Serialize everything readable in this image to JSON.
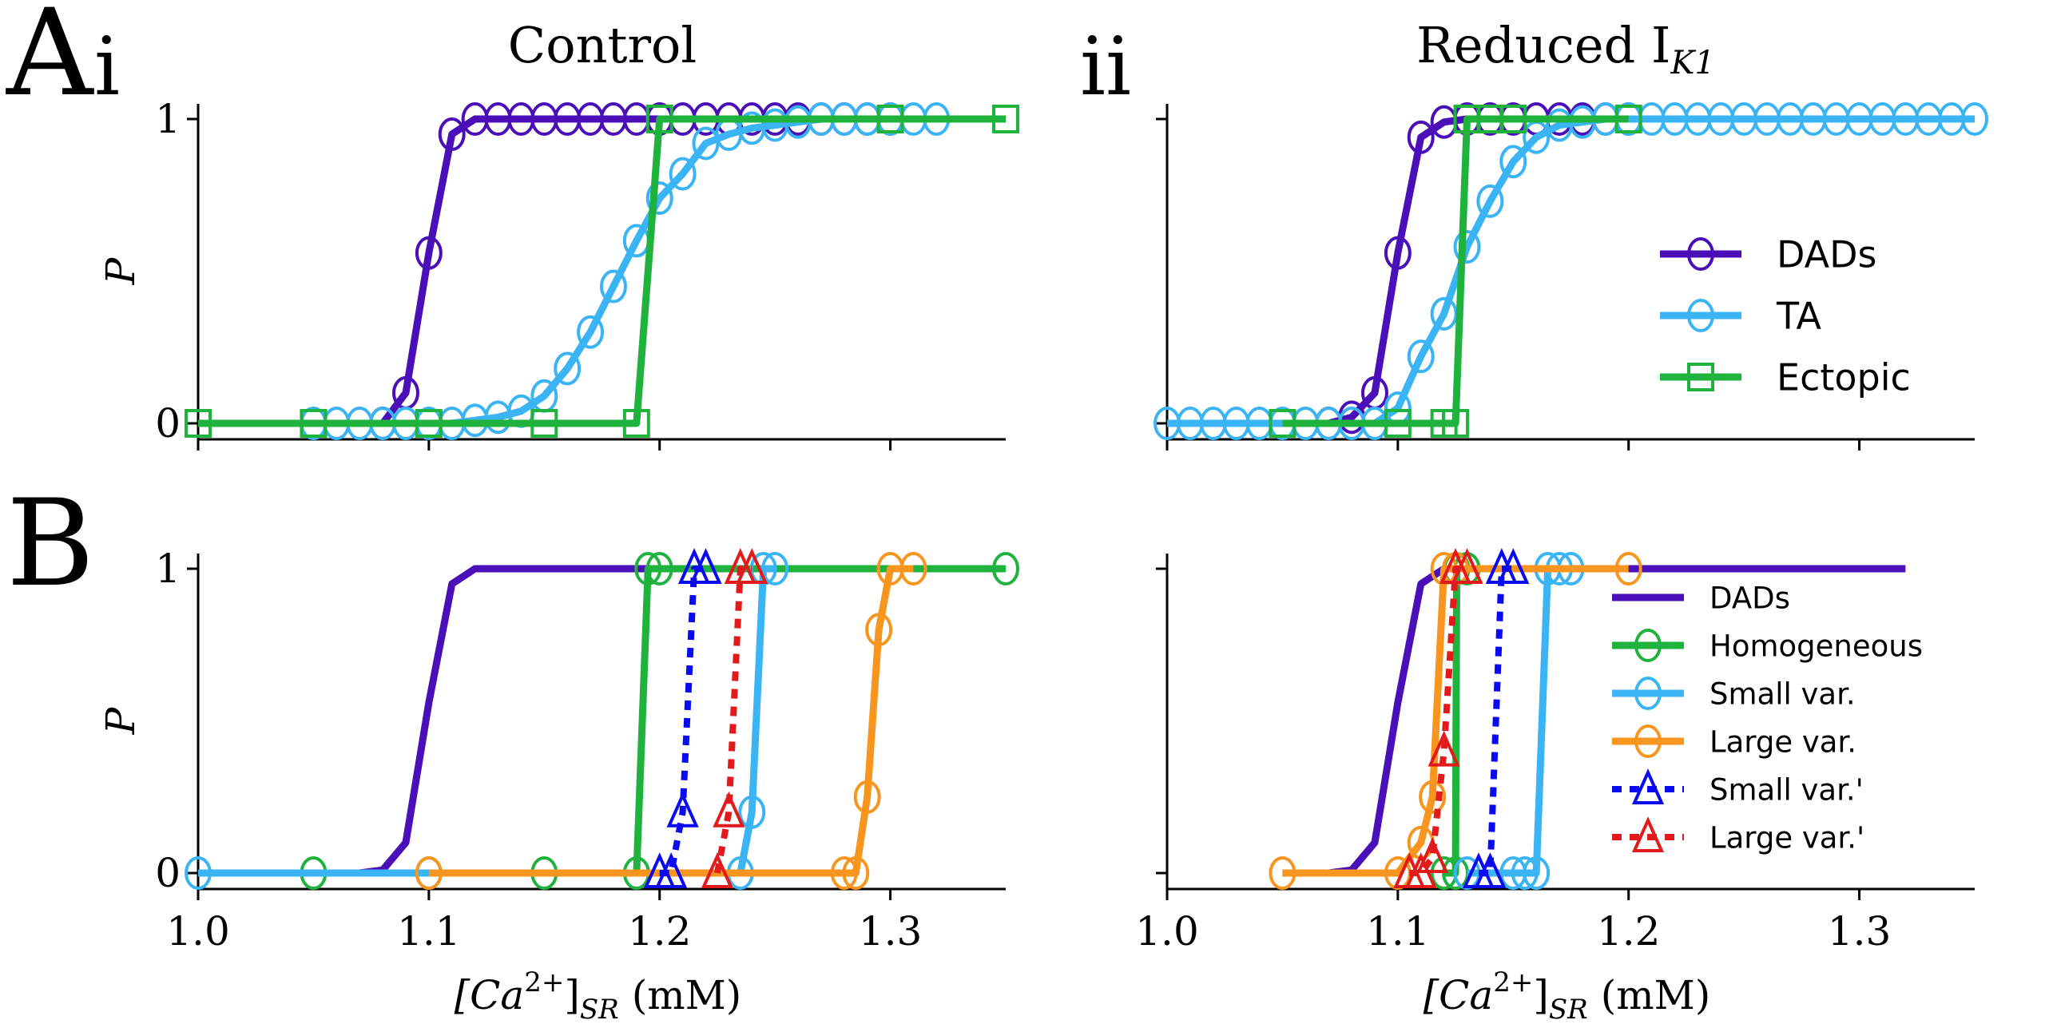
{
  "figure": {
    "panel_labels": {
      "A": "A",
      "Ai_sub": "i",
      "Aii": "ii",
      "B": "B"
    },
    "colors": {
      "DADs": "#4a0fb8",
      "TA": "#3ab4f5",
      "Ectopic": "#1fb33d",
      "Homogeneous": "#1fb33d",
      "Small var.": "#3ab4f5",
      "Large var.": "#f7951e",
      "Small var.'": "#0a0af0",
      "Large var.'": "#e31a1c"
    }
  },
  "chart_data": [
    {
      "id": "Ai",
      "type": "line",
      "title": "Control",
      "xlabel": "",
      "ylabel": "P",
      "xlim": [
        1.0,
        1.35
      ],
      "ylim": [
        0,
        1
      ],
      "xticks": [
        1.0,
        1.1,
        1.2,
        1.3
      ],
      "xtick_labels": [],
      "yticks": [
        0,
        1
      ],
      "ytick_labels": [
        "0",
        "1"
      ],
      "legend": null,
      "series": [
        {
          "name": "DADs",
          "marker": "circle",
          "dash": "solid",
          "x": [
            1.08,
            1.09,
            1.1,
            1.11,
            1.12,
            1.13,
            1.14,
            1.15,
            1.16,
            1.17,
            1.18,
            1.19,
            1.2,
            1.21,
            1.22,
            1.23,
            1.24,
            1.25,
            1.26,
            1.27,
            1.28,
            1.29,
            1.3
          ],
          "y": [
            0,
            0.1,
            0.56,
            0.95,
            1,
            1,
            1,
            1,
            1,
            1,
            1,
            1,
            1,
            1,
            1,
            1,
            1,
            1,
            1,
            1,
            1,
            1,
            1
          ]
        },
        {
          "name": "TA",
          "marker": "circle",
          "dash": "solid",
          "x": [
            1.05,
            1.06,
            1.07,
            1.08,
            1.09,
            1.1,
            1.11,
            1.12,
            1.13,
            1.14,
            1.15,
            1.16,
            1.17,
            1.18,
            1.19,
            1.2,
            1.21,
            1.22,
            1.23,
            1.24,
            1.25,
            1.26,
            1.27,
            1.28,
            1.29,
            1.3,
            1.31,
            1.32
          ],
          "y": [
            0,
            0,
            0,
            0,
            0,
            0,
            0,
            0.01,
            0.02,
            0.04,
            0.09,
            0.18,
            0.3,
            0.45,
            0.6,
            0.74,
            0.82,
            0.92,
            0.95,
            0.97,
            0.98,
            0.99,
            1,
            1,
            1,
            1,
            1,
            1
          ]
        },
        {
          "name": "Ectopic",
          "marker": "square",
          "dash": "solid",
          "x": [
            1.0,
            1.05,
            1.1,
            1.15,
            1.19,
            1.2,
            1.3,
            1.35
          ],
          "y": [
            0,
            0,
            0,
            0,
            0,
            1,
            1,
            1
          ]
        }
      ]
    },
    {
      "id": "Aii",
      "type": "line",
      "title": "Reduced I",
      "title_sub": "K1",
      "xlabel": "",
      "ylabel": "",
      "xlim": [
        1.0,
        1.35
      ],
      "ylim": [
        0,
        1
      ],
      "xticks": [
        1.0,
        1.1,
        1.2,
        1.3
      ],
      "xtick_labels": [],
      "yticks": [
        0,
        1
      ],
      "ytick_labels": [],
      "legend": {
        "placement": "center-right",
        "entries": [
          "DADs",
          "TA",
          "Ectopic"
        ]
      },
      "series": [
        {
          "name": "DADs",
          "marker": "circle",
          "dash": "solid",
          "x": [
            1.07,
            1.08,
            1.09,
            1.1,
            1.11,
            1.12,
            1.13,
            1.14,
            1.15,
            1.16,
            1.17,
            1.18,
            1.19,
            1.2
          ],
          "y": [
            0,
            0.02,
            0.1,
            0.56,
            0.94,
            0.99,
            1,
            1,
            1,
            1,
            1,
            1,
            1,
            1
          ]
        },
        {
          "name": "TA",
          "marker": "circle",
          "dash": "solid",
          "x": [
            1.0,
            1.01,
            1.02,
            1.03,
            1.04,
            1.05,
            1.06,
            1.07,
            1.08,
            1.09,
            1.1,
            1.11,
            1.12,
            1.13,
            1.14,
            1.15,
            1.16,
            1.17,
            1.18,
            1.19,
            1.2,
            1.21,
            1.22,
            1.23,
            1.24,
            1.25,
            1.26,
            1.27,
            1.28,
            1.29,
            1.3,
            1.31,
            1.32,
            1.33,
            1.34,
            1.35
          ],
          "y": [
            0,
            0,
            0,
            0,
            0,
            0,
            0,
            0,
            0,
            0,
            0.05,
            0.22,
            0.36,
            0.58,
            0.73,
            0.86,
            0.94,
            0.98,
            0.99,
            1,
            1,
            1,
            1,
            1,
            1,
            1,
            1,
            1,
            1,
            1,
            1,
            1,
            1,
            1,
            1,
            1
          ]
        },
        {
          "name": "Ectopic",
          "marker": "square",
          "dash": "solid",
          "x": [
            1.05,
            1.1,
            1.12,
            1.125,
            1.13,
            1.14,
            1.15,
            1.2
          ],
          "y": [
            0,
            0,
            0,
            0,
            1,
            1,
            1,
            1
          ]
        }
      ]
    },
    {
      "id": "Bi",
      "type": "line",
      "title": "",
      "xlabel": "[Ca2+]SR (mM)",
      "ylabel": "P",
      "xlim": [
        1.0,
        1.35
      ],
      "ylim": [
        0,
        1
      ],
      "xticks": [
        1.0,
        1.1,
        1.2,
        1.3
      ],
      "xtick_labels": [
        "1.0",
        "1.1",
        "1.2",
        "1.3"
      ],
      "yticks": [
        0,
        1
      ],
      "ytick_labels": [
        "0",
        "1"
      ],
      "legend": null,
      "series": [
        {
          "name": "DADs",
          "marker": "none",
          "dash": "solid",
          "x": [
            1.0,
            1.07,
            1.08,
            1.09,
            1.1,
            1.11,
            1.12,
            1.2
          ],
          "y": [
            0,
            0,
            0.01,
            0.1,
            0.56,
            0.95,
            1,
            1
          ]
        },
        {
          "name": "Homogeneous",
          "marker": "circle",
          "dash": "solid",
          "x": [
            1.05,
            1.15,
            1.19,
            1.195,
            1.2,
            1.35
          ],
          "y": [
            0,
            0,
            0,
            1,
            1,
            1
          ]
        },
        {
          "name": "Small var.",
          "marker": "circle",
          "dash": "solid",
          "x": [
            1.0,
            1.1,
            1.235,
            1.24,
            1.245,
            1.25
          ],
          "y": [
            0,
            0,
            0,
            0.2,
            1,
            1
          ]
        },
        {
          "name": "Large var.",
          "marker": "circle",
          "dash": "solid",
          "x": [
            1.1,
            1.28,
            1.285,
            1.29,
            1.295,
            1.3,
            1.31
          ],
          "y": [
            0,
            0,
            0,
            0.25,
            0.8,
            1,
            1
          ]
        },
        {
          "name": "Small var.'",
          "marker": "triangle",
          "dash": "dashed",
          "x": [
            1.2,
            1.205,
            1.21,
            1.215,
            1.22
          ],
          "y": [
            0,
            0,
            0.2,
            1,
            1
          ]
        },
        {
          "name": "Large var.'",
          "marker": "triangle",
          "dash": "dashed",
          "x": [
            1.225,
            1.23,
            1.235,
            1.24
          ],
          "y": [
            0,
            0.2,
            1,
            1
          ]
        }
      ]
    },
    {
      "id": "Bii",
      "type": "line",
      "title": "",
      "xlabel": "[Ca2+]SR (mM)",
      "ylabel": "",
      "xlim": [
        1.0,
        1.35
      ],
      "ylim": [
        0,
        1
      ],
      "xticks": [
        1.0,
        1.1,
        1.2,
        1.3
      ],
      "xtick_labels": [
        "1.0",
        "1.1",
        "1.2",
        "1.3"
      ],
      "yticks": [
        0,
        1
      ],
      "ytick_labels": [],
      "legend": {
        "placement": "center-right",
        "entries": [
          "DADs",
          "Homogeneous",
          "Small var.",
          "Large var.",
          "Small var.'",
          "Large var.'"
        ]
      },
      "series": [
        {
          "name": "DADs",
          "marker": "none",
          "dash": "solid",
          "x": [
            1.05,
            1.07,
            1.08,
            1.09,
            1.1,
            1.11,
            1.12,
            1.32
          ],
          "y": [
            0,
            0,
            0.01,
            0.1,
            0.56,
            0.95,
            1,
            1
          ]
        },
        {
          "name": "Homogeneous",
          "marker": "circle",
          "dash": "solid",
          "x": [
            1.12,
            1.125,
            1.1255,
            1.13
          ],
          "y": [
            0,
            0,
            1,
            1
          ]
        },
        {
          "name": "Small var.",
          "marker": "circle",
          "dash": "solid",
          "x": [
            1.13,
            1.15,
            1.155,
            1.16,
            1.165,
            1.17,
            1.175
          ],
          "y": [
            0,
            0,
            0,
            0,
            1,
            1,
            1
          ]
        },
        {
          "name": "Large var.",
          "marker": "circle",
          "dash": "solid",
          "x": [
            1.05,
            1.1,
            1.11,
            1.115,
            1.12,
            1.125,
            1.2
          ],
          "y": [
            0,
            0,
            0.1,
            0.25,
            1,
            1,
            1
          ]
        },
        {
          "name": "Small var.'",
          "marker": "triangle",
          "dash": "dashed",
          "x": [
            1.135,
            1.14,
            1.145,
            1.15
          ],
          "y": [
            0,
            0,
            1,
            1
          ]
        },
        {
          "name": "Large var.'",
          "marker": "triangle",
          "dash": "dashed",
          "x": [
            1.105,
            1.11,
            1.115,
            1.12,
            1.125,
            1.13
          ],
          "y": [
            0,
            0,
            0.05,
            0.4,
            1,
            1
          ]
        }
      ]
    }
  ],
  "axis_text": {
    "xlabel_main": "[Ca",
    "xlabel_sup": "2+",
    "xlabel_close": "]",
    "xlabel_sub": "SR",
    "xlabel_unit": "(mM)",
    "ylabel": "P"
  }
}
